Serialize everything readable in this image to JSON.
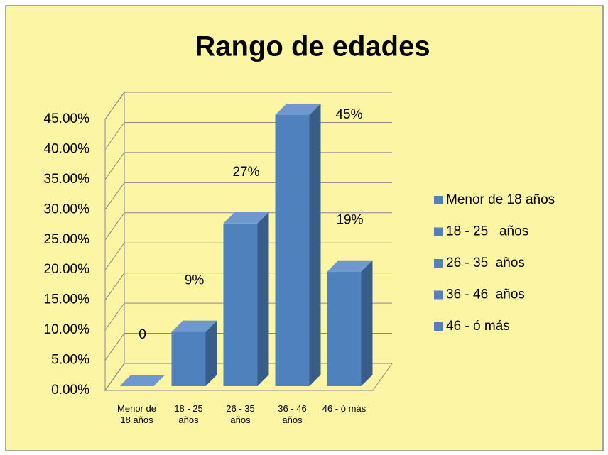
{
  "chart_data": {
    "type": "bar3d",
    "title": "Rango de edades",
    "categories": [
      "Menor de 18 años",
      "18 - 25 años",
      "26 - 35 años",
      "36 - 46 años",
      "46 - ó más"
    ],
    "values": [
      0,
      9,
      27,
      45,
      19
    ],
    "value_labels": [
      "0",
      "9%",
      "27%",
      "45%",
      "19%"
    ],
    "color": "#4f81bd",
    "legend": [
      "Menor de 18 años",
      "18 - 25   años",
      "26 - 35  años",
      "36 - 46  años",
      "46 - ó más"
    ],
    "ylim": [
      0,
      45
    ],
    "yticks": [
      {
        "value": 0,
        "label": "0.00%"
      },
      {
        "value": 5,
        "label": "5.00%"
      },
      {
        "value": 10,
        "label": "10.00%"
      },
      {
        "value": 15,
        "label": "15.00%"
      },
      {
        "value": 20,
        "label": "20.00%"
      },
      {
        "value": 25,
        "label": "25.00%"
      },
      {
        "value": 30,
        "label": "30.00%"
      },
      {
        "value": 35,
        "label": "35.00%"
      },
      {
        "value": 40,
        "label": "40.00%"
      },
      {
        "value": 45,
        "label": "45.00%"
      }
    ],
    "grid": true,
    "legend_position": "right"
  }
}
